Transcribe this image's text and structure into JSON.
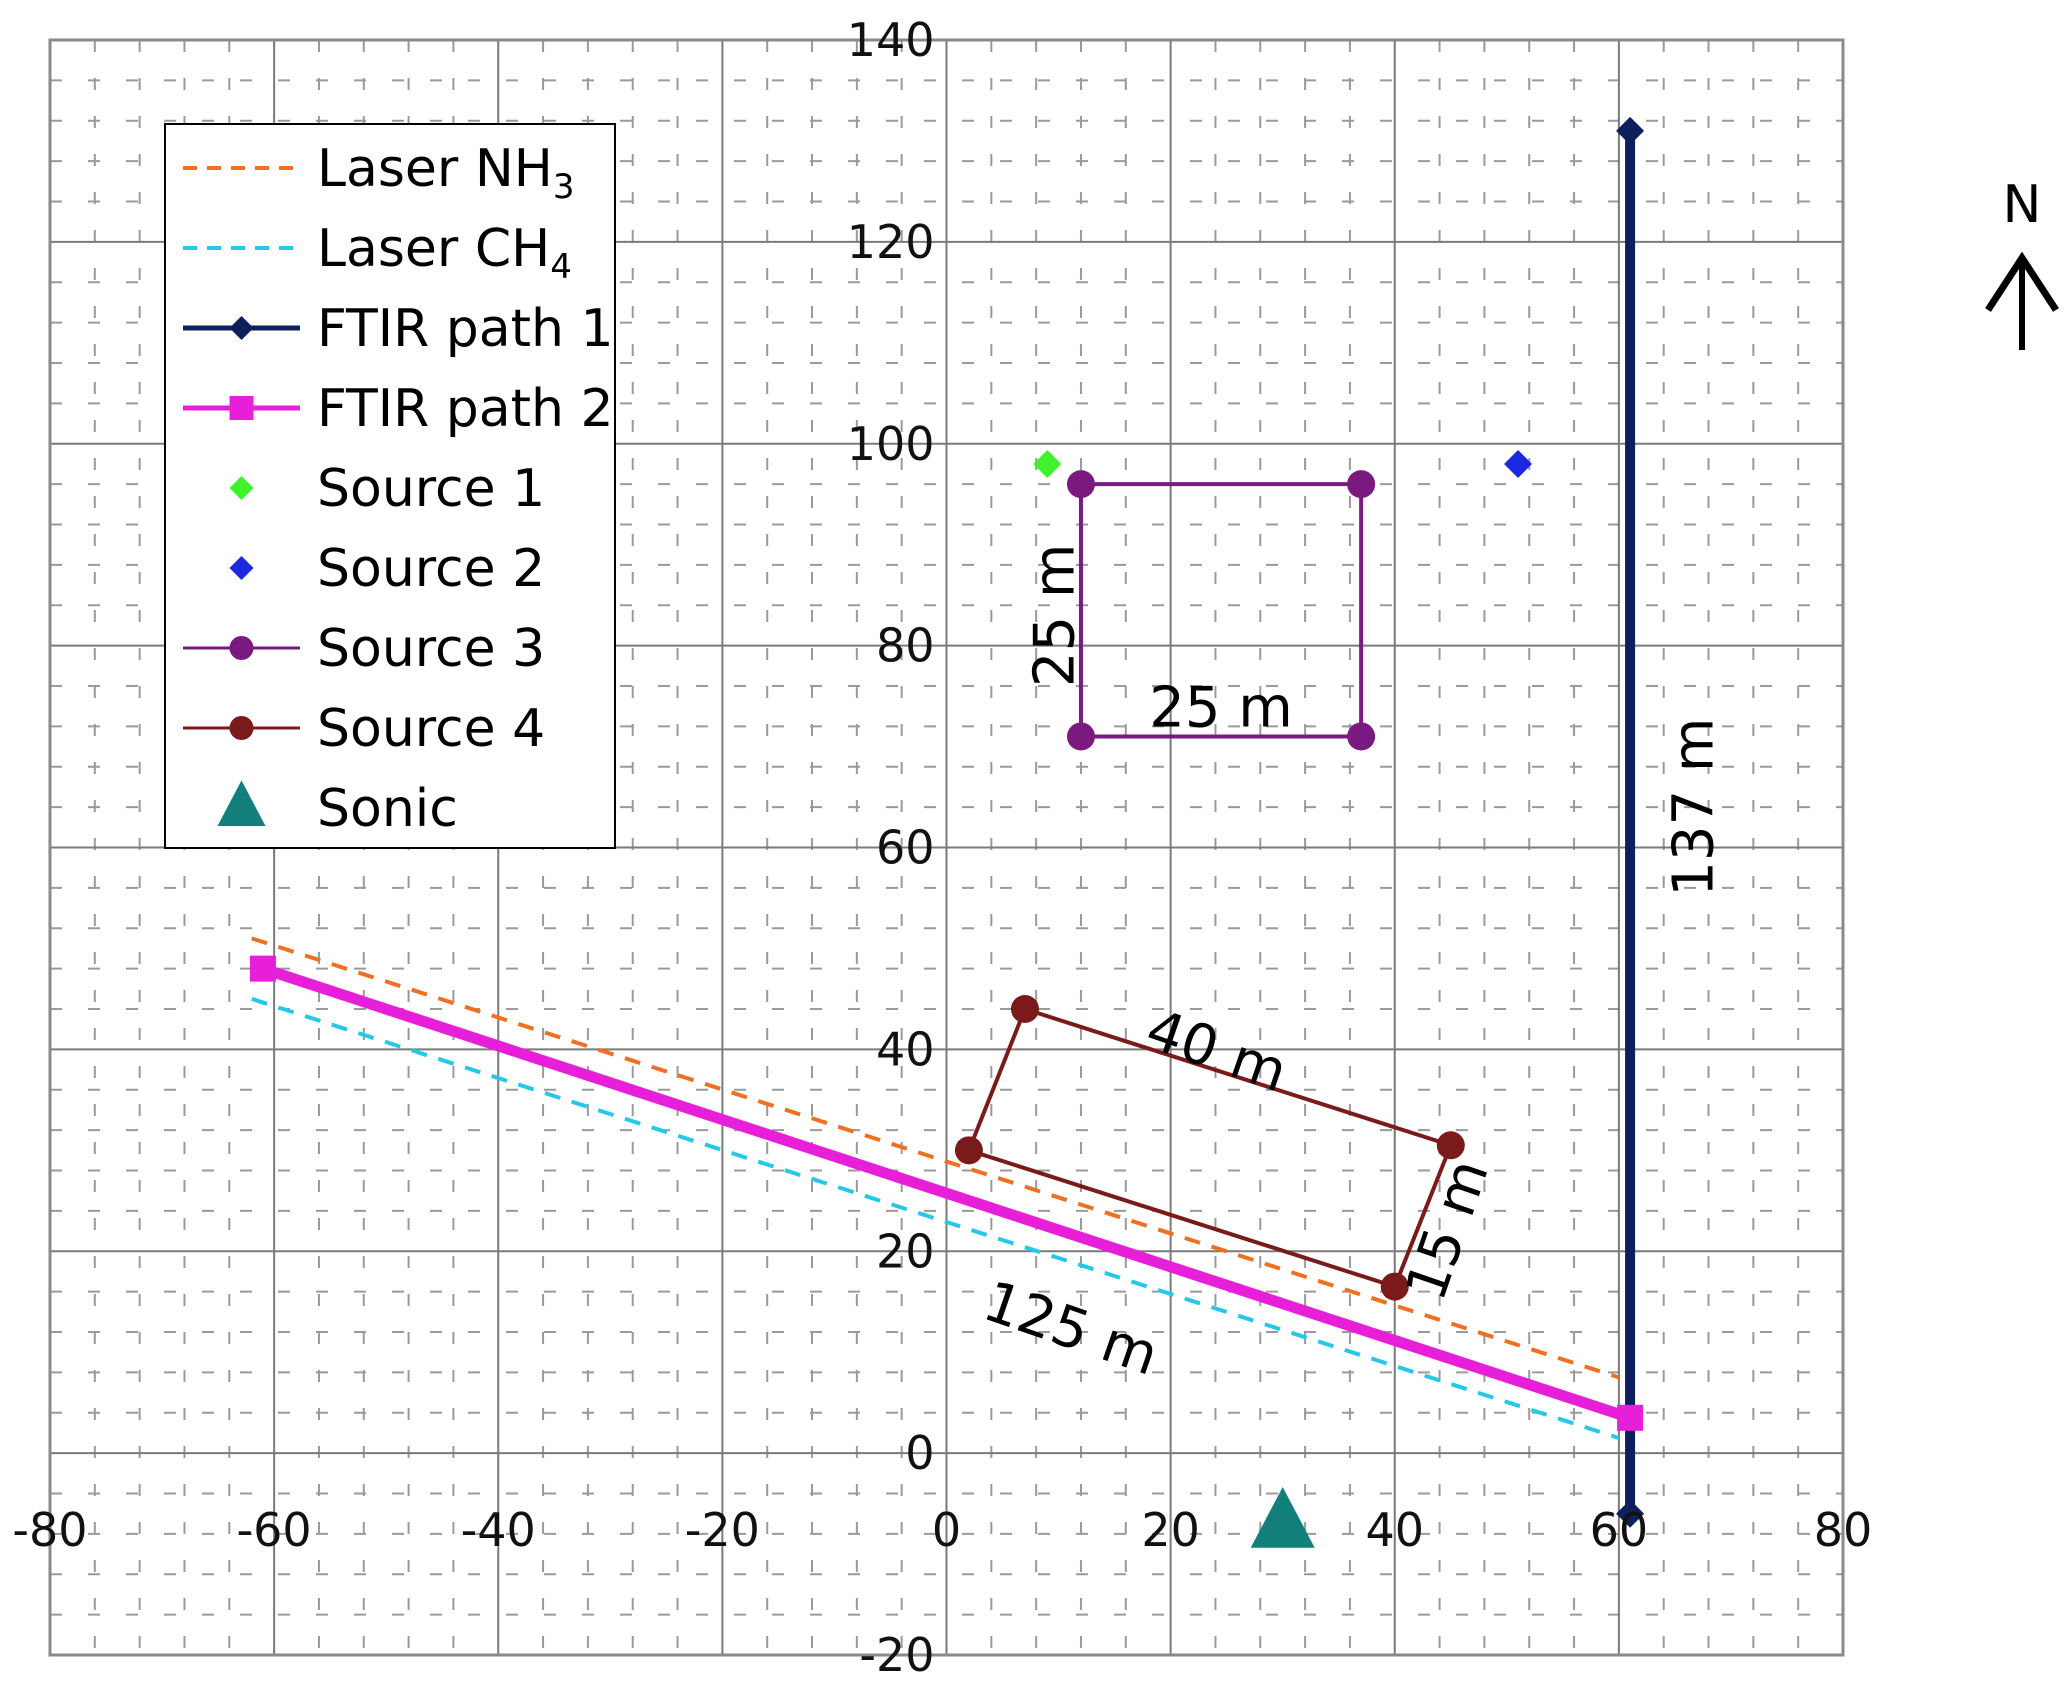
{
  "chart_data": {
    "type": "scatter",
    "title": "",
    "xlabel": "",
    "ylabel": "",
    "xlim": [
      -80,
      80
    ],
    "ylim": [
      -20,
      140
    ],
    "x_ticks": [
      -80,
      -60,
      -40,
      -20,
      0,
      20,
      40,
      60,
      80
    ],
    "y_ticks": [
      -20,
      0,
      20,
      40,
      60,
      80,
      100,
      120,
      140
    ],
    "grid": true,
    "legend_position": "top-left",
    "north_label": "N",
    "series": [
      {
        "name": "Laser NH",
        "name_subscript": "3",
        "kind": "line",
        "style": "dashed",
        "color": "#f07020",
        "points": [
          [
            -62,
            51
          ],
          [
            60,
            7.5
          ]
        ]
      },
      {
        "name": "Laser CH",
        "name_subscript": "4",
        "kind": "line",
        "style": "dashed",
        "color": "#25c8e8",
        "points": [
          [
            -62,
            45
          ],
          [
            60,
            1.5
          ]
        ]
      },
      {
        "name": "FTIR path 1",
        "kind": "line-marker",
        "style": "solid",
        "marker": "diamond",
        "color": "#0d1f5c",
        "points": [
          [
            61,
            -6
          ],
          [
            61,
            131
          ]
        ]
      },
      {
        "name": "FTIR path 2",
        "kind": "line-marker",
        "style": "solid",
        "marker": "square",
        "color": "#e81fd8",
        "points": [
          [
            -61,
            48
          ],
          [
            61,
            3.5
          ]
        ]
      },
      {
        "name": "Source 1",
        "kind": "marker",
        "marker": "diamond",
        "color": "#3ef22c",
        "points": [
          [
            9,
            98
          ]
        ]
      },
      {
        "name": "Source 2",
        "kind": "marker",
        "marker": "diamond",
        "color": "#1a28e0",
        "points": [
          [
            51,
            98
          ]
        ]
      },
      {
        "name": "Source 3",
        "kind": "polygon",
        "marker": "circle",
        "color": "#7a1a80",
        "points": [
          [
            12,
            96
          ],
          [
            37,
            96
          ],
          [
            37,
            71
          ],
          [
            12,
            71
          ]
        ]
      },
      {
        "name": "Source 4",
        "kind": "polygon",
        "marker": "circle",
        "color": "#7a1a1a",
        "points": [
          [
            7,
            44
          ],
          [
            45,
            30.5
          ],
          [
            40,
            16.5
          ],
          [
            2,
            30
          ]
        ]
      },
      {
        "name": "Sonic",
        "kind": "marker",
        "marker": "triangle",
        "color": "#137f7a",
        "points": [
          [
            30,
            -7
          ]
        ]
      }
    ],
    "annotations": [
      {
        "text": "25 m",
        "x": 10,
        "y": 83,
        "rotate": -90
      },
      {
        "text": "25 m",
        "x": 24.5,
        "y": 73.5,
        "rotate": 0
      },
      {
        "text": "40 m",
        "x": 24,
        "y": 39.5,
        "rotate": 19
      },
      {
        "text": "15 m",
        "x": 45,
        "y": 22,
        "rotate": -71
      },
      {
        "text": "125 m",
        "x": 11,
        "y": 12,
        "rotate": 19
      },
      {
        "text": "137 m",
        "x": 67,
        "y": 64,
        "rotate": -90
      }
    ]
  }
}
